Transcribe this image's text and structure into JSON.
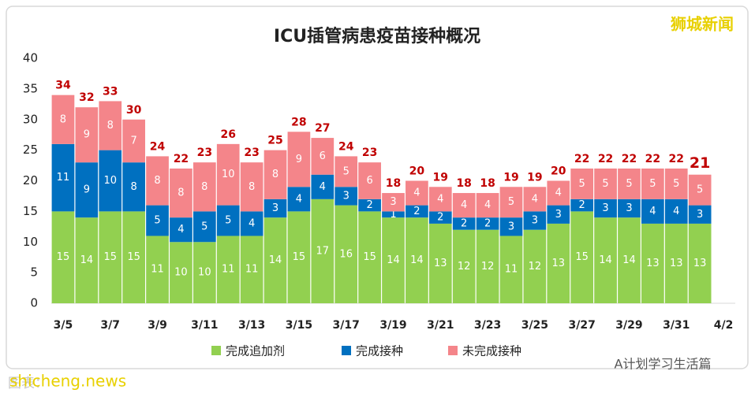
{
  "chart_data": {
    "type": "stacked-bar",
    "title": "ICU插管病患疫苗接种概况",
    "categories": [
      "3/5",
      null,
      "3/7",
      null,
      "3/9",
      null,
      "3/11",
      null,
      "3/13",
      null,
      "3/15",
      null,
      "3/17",
      null,
      "3/19",
      null,
      "3/21",
      null,
      "3/23",
      null,
      "3/25",
      null,
      "3/27",
      null,
      "3/29",
      null,
      "3/31",
      null,
      "4/2"
    ],
    "series": [
      {
        "name": "完成追加剂",
        "color": "#92d050",
        "values": [
          15,
          14,
          15,
          15,
          11,
          10,
          10,
          11,
          11,
          14,
          15,
          17,
          16,
          15,
          14,
          14,
          13,
          12,
          12,
          11,
          12,
          13,
          15,
          14,
          14,
          13,
          13,
          13,
          null
        ]
      },
      {
        "name": "完成接种",
        "color": "#0070c0",
        "values": [
          11,
          9,
          10,
          8,
          5,
          4,
          5,
          5,
          4,
          3,
          4,
          4,
          3,
          2,
          1,
          2,
          2,
          2,
          2,
          3,
          3,
          3,
          2,
          3,
          3,
          4,
          4,
          3,
          null
        ]
      },
      {
        "name": "未完成接种",
        "color": "#f4858a",
        "values": [
          8,
          9,
          8,
          7,
          8,
          8,
          8,
          10,
          8,
          8,
          9,
          6,
          5,
          6,
          3,
          4,
          4,
          4,
          4,
          5,
          4,
          4,
          5,
          5,
          5,
          5,
          5,
          5,
          null
        ]
      }
    ],
    "totals": [
      34,
      32,
      33,
      30,
      24,
      22,
      23,
      26,
      23,
      25,
      28,
      27,
      24,
      23,
      18,
      20,
      19,
      18,
      18,
      19,
      19,
      20,
      22,
      22,
      22,
      22,
      22,
      21,
      null
    ],
    "ylim": [
      0,
      40
    ],
    "yticks": [
      0,
      5,
      10,
      15,
      20,
      25,
      30,
      35,
      40
    ],
    "grid": false
  },
  "watermark": "狮城新闻",
  "footer_left": "shicheng.news",
  "caption": "图表：",
  "footer_right": "A计划学习生活篇"
}
